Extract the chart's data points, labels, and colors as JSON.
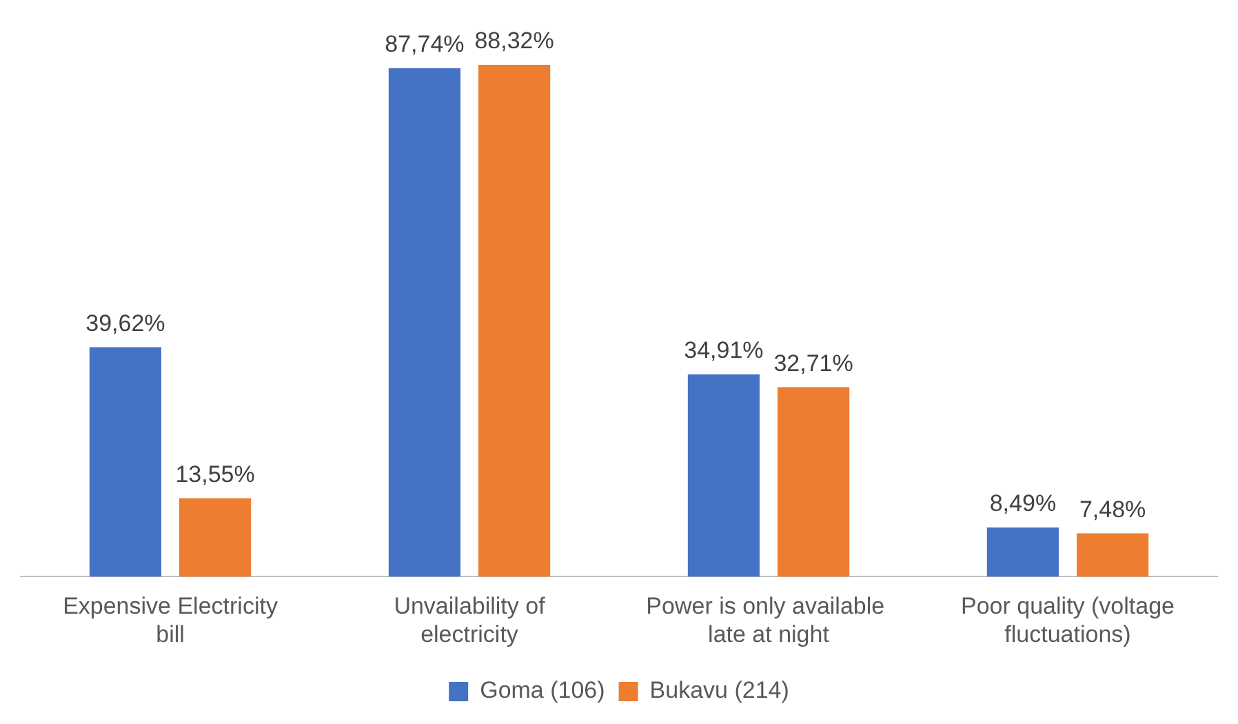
{
  "chart_data": {
    "type": "bar",
    "categories": [
      "Expensive Electricity bill",
      "Unvailability of electricity",
      "Power is only available  late at night",
      "Poor quality (voltage fluctuations)"
    ],
    "series": [
      {
        "name": "Goma (106)",
        "color": "#4472c4",
        "values": [
          39.62,
          87.74,
          34.91,
          8.49
        ],
        "value_labels": [
          "39,62%",
          "87,74%",
          "34,91%",
          "8,49%"
        ]
      },
      {
        "name": "Bukavu (214)",
        "color": "#ed7d31",
        "values": [
          13.55,
          88.32,
          32.71,
          7.48
        ],
        "value_labels": [
          "13,55%",
          "88,32%",
          "32,71%",
          "7,48%"
        ]
      }
    ],
    "legend": "bottom",
    "grid": false
  }
}
